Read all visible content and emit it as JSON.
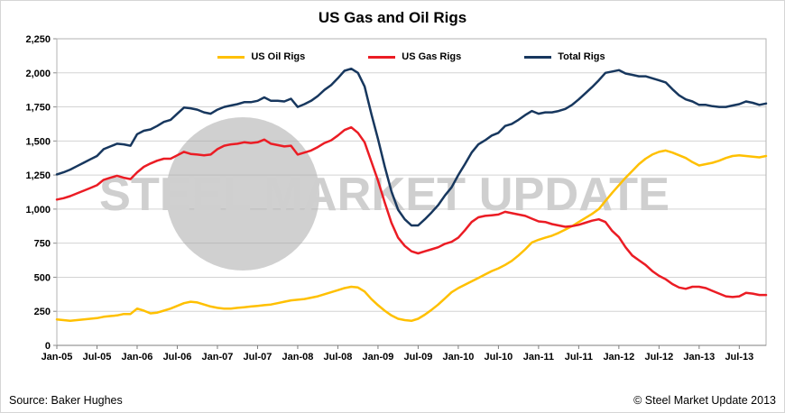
{
  "footer": {
    "source": "Source: Baker Hughes",
    "copyright": "© Steel Market Update 2013"
  },
  "watermark": {
    "text": "STEEL MARKET UPDATE"
  },
  "chart_data": {
    "type": "line",
    "title": "US Gas and Oil Rigs",
    "xlabel": "",
    "ylabel": "",
    "x_cadence": "monthly",
    "x_start": "Jan-05",
    "x_end": "Nov-13",
    "xtick_labels": [
      "Jan-05",
      "Jul-05",
      "Jan-06",
      "Jul-06",
      "Jan-07",
      "Jul-07",
      "Jan-08",
      "Jul-08",
      "Jan-09",
      "Jul-09",
      "Jan-10",
      "Jul-10",
      "Jan-11",
      "Jul-11",
      "Jan-12",
      "Jul-12",
      "Jan-13",
      "Jul-13"
    ],
    "xtick_month_indices": [
      0,
      6,
      12,
      18,
      24,
      30,
      36,
      42,
      48,
      54,
      60,
      66,
      72,
      78,
      84,
      90,
      96,
      102
    ],
    "ylim": [
      0,
      2250
    ],
    "ytick_step": 250,
    "ytick_labels": [
      "0",
      "250",
      "500",
      "750",
      "1,000",
      "1,250",
      "1,500",
      "1,750",
      "2,000",
      "2,250"
    ],
    "grid": "horizontal",
    "legend_position": "top-inside",
    "series": [
      {
        "name": "US Oil Rigs",
        "color": "#FFC000",
        "values": [
          190,
          185,
          180,
          185,
          190,
          195,
          200,
          210,
          215,
          220,
          230,
          230,
          270,
          255,
          235,
          240,
          255,
          270,
          290,
          310,
          320,
          315,
          300,
          285,
          275,
          270,
          270,
          275,
          280,
          285,
          290,
          295,
          300,
          310,
          320,
          330,
          335,
          340,
          350,
          360,
          375,
          390,
          405,
          420,
          430,
          425,
          395,
          340,
          295,
          255,
          220,
          195,
          185,
          180,
          195,
          225,
          260,
          300,
          345,
          390,
          420,
          445,
          470,
          495,
          520,
          545,
          565,
          590,
          620,
          660,
          705,
          755,
          775,
          790,
          805,
          825,
          850,
          875,
          905,
          935,
          965,
          1000,
          1060,
          1120,
          1175,
          1230,
          1280,
          1330,
          1370,
          1400,
          1420,
          1430,
          1415,
          1395,
          1375,
          1345,
          1320,
          1330,
          1340,
          1355,
          1375,
          1390,
          1395,
          1390,
          1385,
          1380,
          1390
        ]
      },
      {
        "name": "US Gas Rigs",
        "color": "#EB1C24",
        "values": [
          1070,
          1080,
          1095,
          1115,
          1135,
          1155,
          1175,
          1215,
          1230,
          1245,
          1230,
          1220,
          1270,
          1310,
          1335,
          1355,
          1370,
          1370,
          1395,
          1420,
          1405,
          1400,
          1395,
          1400,
          1440,
          1465,
          1475,
          1480,
          1490,
          1485,
          1490,
          1510,
          1480,
          1470,
          1460,
          1465,
          1400,
          1415,
          1430,
          1455,
          1485,
          1505,
          1540,
          1580,
          1600,
          1560,
          1490,
          1350,
          1210,
          1050,
          900,
          790,
          730,
          690,
          675,
          690,
          705,
          720,
          745,
          760,
          790,
          845,
          905,
          940,
          950,
          955,
          960,
          980,
          970,
          960,
          950,
          930,
          910,
          905,
          890,
          880,
          870,
          875,
          885,
          900,
          915,
          925,
          905,
          840,
          795,
          720,
          660,
          625,
          590,
          545,
          510,
          485,
          450,
          425,
          415,
          430,
          430,
          420,
          400,
          380,
          360,
          355,
          360,
          385,
          380,
          370,
          370
        ]
      },
      {
        "name": "Total Rigs",
        "color": "#17375E",
        "values": [
          1255,
          1270,
          1290,
          1315,
          1340,
          1365,
          1390,
          1440,
          1460,
          1480,
          1475,
          1465,
          1550,
          1575,
          1585,
          1610,
          1640,
          1655,
          1700,
          1745,
          1740,
          1730,
          1710,
          1700,
          1730,
          1750,
          1760,
          1770,
          1785,
          1785,
          1795,
          1820,
          1795,
          1795,
          1790,
          1810,
          1750,
          1770,
          1795,
          1830,
          1875,
          1910,
          1960,
          2015,
          2030,
          2000,
          1900,
          1700,
          1515,
          1315,
          1130,
          995,
          925,
          880,
          880,
          925,
          975,
          1030,
          1100,
          1160,
          1250,
          1330,
          1415,
          1475,
          1505,
          1540,
          1560,
          1610,
          1625,
          1655,
          1690,
          1720,
          1700,
          1710,
          1710,
          1720,
          1735,
          1765,
          1805,
          1850,
          1895,
          1945,
          2000,
          2010,
          2020,
          1995,
          1985,
          1975,
          1975,
          1960,
          1945,
          1930,
          1880,
          1835,
          1805,
          1790,
          1765,
          1765,
          1755,
          1750,
          1750,
          1760,
          1770,
          1790,
          1780,
          1765,
          1775
        ]
      }
    ]
  }
}
